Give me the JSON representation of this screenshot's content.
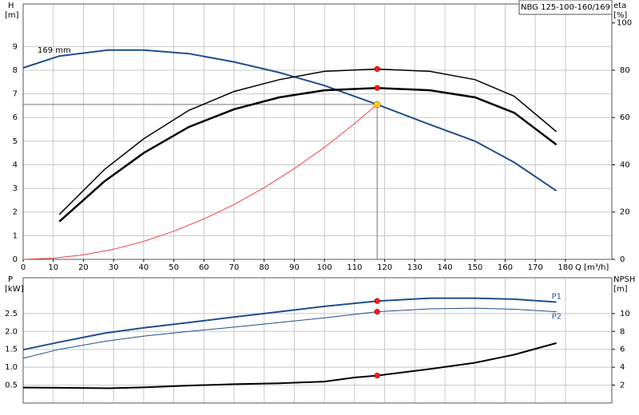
{
  "chart_data": [
    {
      "type": "line",
      "title": "NBG 125-100-160/169",
      "xlabel": "Q [m³/h]",
      "ylabel": "H",
      "yunit": "[m]",
      "y2label": "eta",
      "y2unit": "[%]",
      "annotation": "169 mm",
      "grid": true,
      "xlim": [
        0,
        195.4
      ],
      "xticks": [
        0,
        10,
        20,
        30,
        40,
        50,
        60,
        70,
        80,
        90,
        100,
        110,
        120,
        130,
        140,
        150,
        160,
        170,
        180
      ],
      "ylim": [
        0,
        10.8
      ],
      "yticks": [
        0,
        1,
        2,
        3,
        4,
        5,
        6,
        7,
        8,
        9
      ],
      "y2lim": [
        0,
        108
      ],
      "y2ticks": [
        0,
        20,
        40,
        60,
        80,
        100
      ],
      "series": [
        {
          "color": "#1f4e8c",
          "width": 2,
          "axis": "y",
          "x": [
            0,
            12,
            28,
            40,
            55,
            70,
            85,
            100,
            117.5,
            135,
            150,
            163,
            177
          ],
          "values": [
            8.1,
            8.6,
            8.85,
            8.85,
            8.7,
            8.35,
            7.9,
            7.35,
            6.55,
            5.7,
            5.0,
            4.1,
            2.9
          ]
        },
        {
          "color": "#000000",
          "width": 1.5,
          "axis": "y2",
          "x": [
            12,
            27,
            40,
            55,
            70,
            85,
            100,
            117.5,
            135,
            150,
            163,
            177
          ],
          "values": [
            19,
            38,
            51,
            63,
            71,
            76,
            79.5,
            80.5,
            79.5,
            76,
            69,
            54
          ]
        },
        {
          "color": "#000000",
          "width": 2.5,
          "axis": "y2",
          "x": [
            12,
            27,
            40,
            55,
            70,
            85,
            100,
            117.5,
            135,
            150,
            163,
            177
          ],
          "values": [
            16,
            33,
            45,
            56,
            63.5,
            68.5,
            71.5,
            72.5,
            71.5,
            68.5,
            62,
            48.5
          ]
        },
        {
          "color": "#f04040",
          "width": 1,
          "axis": "y",
          "x": [
            0,
            10,
            20,
            30,
            40,
            50,
            60,
            70,
            80,
            90,
            100,
            110,
            117.5
          ],
          "values": [
            0,
            0.05,
            0.19,
            0.43,
            0.76,
            1.19,
            1.71,
            2.32,
            3.03,
            3.84,
            4.74,
            5.74,
            6.55
          ]
        }
      ],
      "points": [
        {
          "x": 117.5,
          "y": 6.55,
          "axis": "y",
          "color": "#ffd21f",
          "cursor": true
        },
        {
          "x": 117.5,
          "y": 80.5,
          "axis": "y2",
          "color": "#ff1a1a"
        },
        {
          "x": 117.5,
          "y": 72.5,
          "axis": "y2",
          "color": "#ff1a1a"
        }
      ]
    },
    {
      "type": "line",
      "ylabel": "P",
      "yunit": "[kW]",
      "y2label": "NPSH",
      "y2unit": "[m]",
      "grid": true,
      "xlim": [
        0,
        195.4
      ],
      "ylim": [
        0,
        3.5
      ],
      "yticks": [
        0.5,
        {
          "value": 1,
          "label": "1.0"
        },
        1.5,
        {
          "value": 2,
          "label": "2.0"
        },
        2.5
      ],
      "y2lim": [
        0,
        14
      ],
      "y2ticks": [
        2,
        4,
        6,
        8,
        10
      ],
      "series": [
        {
          "name": "P1",
          "color": "#1f4e8c",
          "width": 2,
          "axis": "y",
          "x": [
            0,
            12,
            27,
            40,
            55,
            70,
            85,
            100,
            117.5,
            135,
            150,
            163,
            177
          ],
          "values": [
            1.49,
            1.7,
            1.95,
            2.1,
            2.25,
            2.4,
            2.55,
            2.7,
            2.85,
            2.93,
            2.93,
            2.9,
            2.82
          ]
        },
        {
          "name": "P2",
          "color": "#1f4e8c",
          "width": 1,
          "axis": "y",
          "x": [
            0,
            12,
            27,
            40,
            55,
            70,
            85,
            100,
            117.5,
            135,
            150,
            163,
            177
          ],
          "values": [
            1.25,
            1.5,
            1.72,
            1.87,
            2.0,
            2.12,
            2.25,
            2.38,
            2.55,
            2.63,
            2.65,
            2.62,
            2.55
          ]
        },
        {
          "color": "#000000",
          "width": 2,
          "axis": "y2",
          "x": [
            0,
            12,
            28,
            40,
            55,
            70,
            85,
            100,
            110,
            117.5,
            135,
            150,
            163,
            177
          ],
          "values": [
            1.73,
            1.7,
            1.65,
            1.75,
            1.95,
            2.1,
            2.2,
            2.4,
            2.85,
            3.07,
            3.8,
            4.5,
            5.4,
            6.7
          ]
        }
      ],
      "points": [
        {
          "x": 117.5,
          "y": 2.85,
          "axis": "y",
          "color": "#ff1a1a"
        },
        {
          "x": 117.5,
          "y": 2.55,
          "axis": "y",
          "color": "#ff1a1a"
        },
        {
          "x": 117.5,
          "y": 3.07,
          "axis": "y2",
          "color": "#ff1a1a"
        }
      ]
    }
  ]
}
